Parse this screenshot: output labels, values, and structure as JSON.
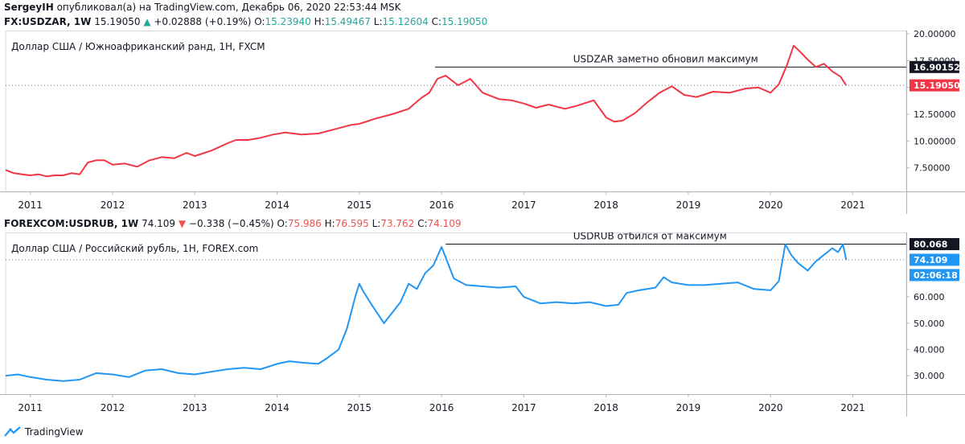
{
  "header": {
    "author": "SergeyIH",
    "published_text": "опубликовал(а) на TradingView.com, Декабрь 06, 2020 22:53:44 MSK"
  },
  "footer": {
    "brand": "TradingView"
  },
  "colors": {
    "zar": "#f23645",
    "rub": "#2196f3",
    "up": "#26a69a",
    "down": "#ef5350"
  },
  "chart_data": [
    {
      "type": "line",
      "symbol": "FX:USDZAR",
      "interval": "1W",
      "last": "15.19050",
      "change": "+0.02888 (+0.19%)",
      "change_dir": "up",
      "ohlc": {
        "O": "15.23940",
        "H": "15.49467",
        "L": "15.12604",
        "C": "15.19050"
      },
      "title": "Доллар США / Южноафриканский ранд, 1Н, FXCM",
      "annotation": "USDZAR заметно обновил максимум",
      "y_ticks": [
        "7.50000",
        "10.00000",
        "12.50000",
        "15.00000",
        "17.50000",
        "20.00000"
      ],
      "x_ticks": [
        "2011",
        "2012",
        "2013",
        "2014",
        "2015",
        "2016",
        "2017",
        "2018",
        "2019",
        "2020",
        "2021"
      ],
      "ylim": [
        5.3,
        20.3
      ],
      "xlim": [
        2010.7,
        2021.65
      ],
      "line_level": "16.90152",
      "last_label": "15.19050",
      "series": [
        {
          "x": [
            2010.7,
            2010.8,
            2010.9,
            2011.0,
            2011.1,
            2011.2,
            2011.3,
            2011.4,
            2011.5,
            2011.6,
            2011.7,
            2011.8,
            2011.9,
            2012.0,
            2012.15,
            2012.3,
            2012.45,
            2012.6,
            2012.75,
            2012.9,
            2013.0,
            2013.2,
            2013.4,
            2013.5,
            2013.65,
            2013.8,
            2013.95,
            2014.1,
            2014.3,
            2014.5,
            2014.7,
            2014.9,
            2015.0,
            2015.2,
            2015.4,
            2015.6,
            2015.75,
            2015.85,
            2015.95,
            2016.05,
            2016.2,
            2016.35,
            2016.5,
            2016.7,
            2016.85,
            2017.0,
            2017.15,
            2017.3,
            2017.5,
            2017.65,
            2017.85,
            2018.0,
            2018.1,
            2018.2,
            2018.35,
            2018.5,
            2018.65,
            2018.8,
            2018.95,
            2019.1,
            2019.3,
            2019.5,
            2019.7,
            2019.85,
            2020.0,
            2020.1,
            2020.2,
            2020.28,
            2020.35,
            2020.45,
            2020.55,
            2020.65,
            2020.75,
            2020.85,
            2020.92
          ],
          "y": [
            7.3,
            7.0,
            6.9,
            6.8,
            6.9,
            6.7,
            6.8,
            6.8,
            7.0,
            6.9,
            8.0,
            8.2,
            8.2,
            7.8,
            7.9,
            7.6,
            8.2,
            8.5,
            8.4,
            8.9,
            8.6,
            9.1,
            9.8,
            10.1,
            10.1,
            10.3,
            10.6,
            10.8,
            10.6,
            10.7,
            11.1,
            11.5,
            11.6,
            12.1,
            12.5,
            13.0,
            14.0,
            14.5,
            15.8,
            16.1,
            15.2,
            15.8,
            14.5,
            13.9,
            13.8,
            13.5,
            13.1,
            13.4,
            13.0,
            13.3,
            13.8,
            12.2,
            11.8,
            11.9,
            12.6,
            13.6,
            14.5,
            15.1,
            14.3,
            14.1,
            14.6,
            14.5,
            14.9,
            15.0,
            14.5,
            15.3,
            17.1,
            18.9,
            18.4,
            17.6,
            16.9,
            17.2,
            16.5,
            16.0,
            15.19
          ]
        }
      ]
    },
    {
      "type": "line",
      "symbol": "FOREXCOM:USDRUB",
      "interval": "1W",
      "last": "74.109",
      "change": "−0.338 (−0.45%)",
      "change_dir": "down",
      "ohlc": {
        "O": "75.986",
        "H": "76.595",
        "L": "73.762",
        "C": "74.109"
      },
      "title": "Доллар США / Российский рубль, 1Н, FOREX.com",
      "annotation": "USDRUB отбился от максимум",
      "y_ticks": [
        "30.000",
        "40.000",
        "50.000",
        "60.000"
      ],
      "x_ticks": [
        "2011",
        "2012",
        "2013",
        "2014",
        "2015",
        "2016",
        "2017",
        "2018",
        "2019",
        "2020",
        "2021"
      ],
      "ylim": [
        23,
        84.5
      ],
      "xlim": [
        2010.7,
        2021.65
      ],
      "line_level": "80.068",
      "last_label": "74.109",
      "countdown": "02:06:18",
      "series": [
        {
          "x": [
            2010.7,
            2010.85,
            2011.0,
            2011.2,
            2011.4,
            2011.6,
            2011.8,
            2012.0,
            2012.2,
            2012.4,
            2012.6,
            2012.8,
            2013.0,
            2013.2,
            2013.4,
            2013.6,
            2013.8,
            2014.0,
            2014.15,
            2014.3,
            2014.5,
            2014.6,
            2014.75,
            2014.85,
            2014.95,
            2015.0,
            2015.05,
            2015.15,
            2015.3,
            2015.4,
            2015.5,
            2015.6,
            2015.7,
            2015.8,
            2015.9,
            2016.0,
            2016.05,
            2016.15,
            2016.3,
            2016.5,
            2016.7,
            2016.9,
            2017.0,
            2017.2,
            2017.4,
            2017.6,
            2017.8,
            2018.0,
            2018.15,
            2018.25,
            2018.4,
            2018.5,
            2018.6,
            2018.7,
            2018.8,
            2019.0,
            2019.2,
            2019.4,
            2019.6,
            2019.8,
            2020.0,
            2020.1,
            2020.18,
            2020.25,
            2020.33,
            2020.45,
            2020.55,
            2020.65,
            2020.75,
            2020.82,
            2020.88,
            2020.92
          ],
          "y": [
            30.0,
            30.5,
            29.5,
            28.5,
            28.0,
            28.5,
            31.0,
            30.5,
            29.5,
            32.0,
            32.5,
            31.0,
            30.5,
            31.5,
            32.5,
            33.0,
            32.5,
            34.5,
            35.5,
            35.0,
            34.5,
            36.5,
            40.0,
            48.0,
            60.0,
            65.0,
            62.0,
            57.0,
            50.0,
            54.0,
            58.0,
            65.0,
            63.0,
            69.0,
            72.0,
            79.0,
            75.0,
            67.0,
            64.5,
            64.0,
            63.5,
            64.0,
            60.0,
            57.5,
            58.0,
            57.5,
            58.0,
            56.5,
            57.0,
            61.5,
            62.5,
            63.0,
            63.5,
            67.5,
            65.5,
            64.5,
            64.5,
            65.0,
            65.5,
            63.0,
            62.5,
            66.0,
            80.0,
            76.0,
            73.0,
            70.0,
            73.5,
            76.0,
            78.5,
            77.0,
            80.0,
            74.1
          ]
        }
      ]
    }
  ]
}
